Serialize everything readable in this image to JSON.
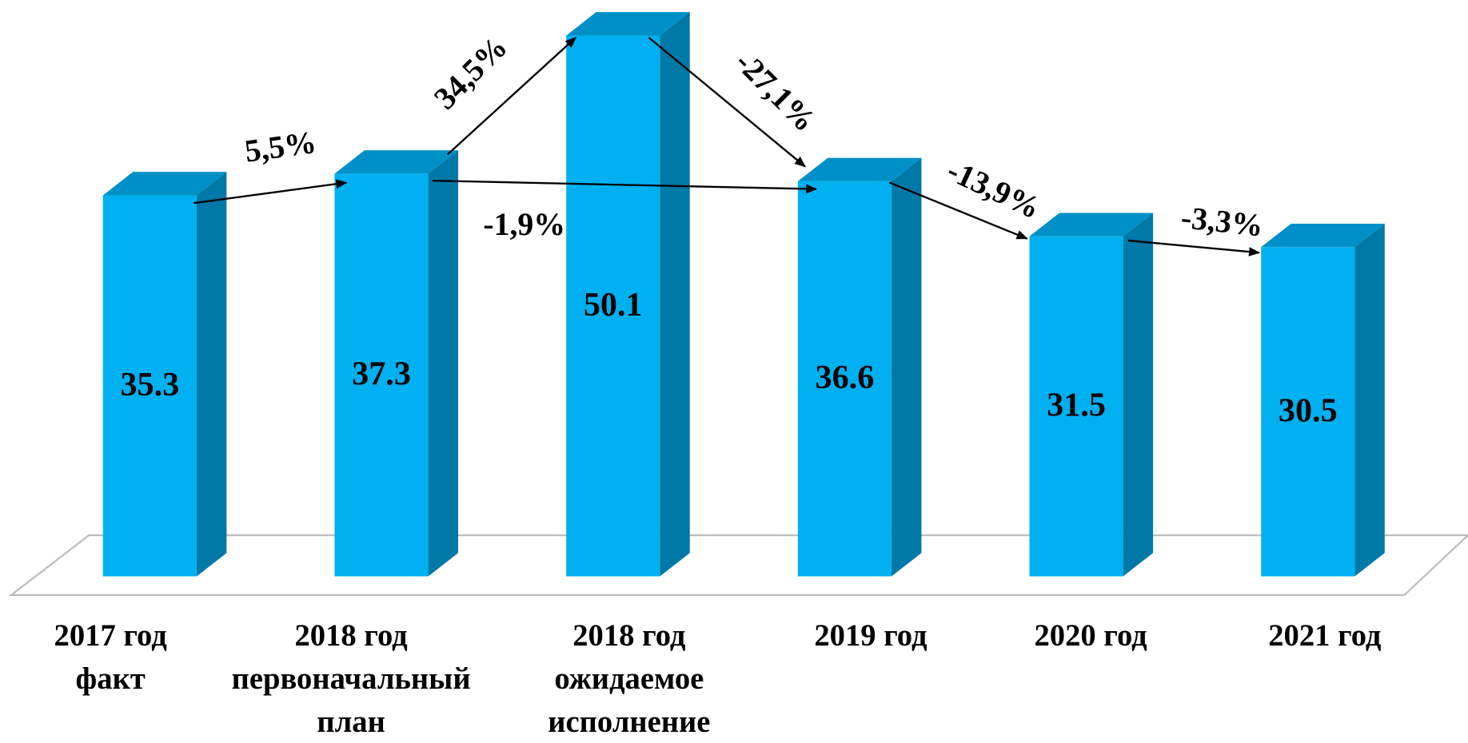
{
  "chart_data": {
    "type": "bar3d",
    "categories": [
      [
        "2017 год",
        "факт"
      ],
      [
        "2018 год",
        "первоначальный",
        "план"
      ],
      [
        "2018 год",
        "ожидаемое",
        "исполнение"
      ],
      [
        "2019 год"
      ],
      [
        "2020 год"
      ],
      [
        "2021 год"
      ]
    ],
    "values": [
      35.3,
      37.3,
      50.1,
      36.6,
      31.5,
      30.5
    ],
    "color": "#00b0f0",
    "annotations": [
      "5,5%",
      "34,5%",
      "-27,1%",
      "-1,9%",
      "-13,9%",
      "-3,3%"
    ]
  }
}
